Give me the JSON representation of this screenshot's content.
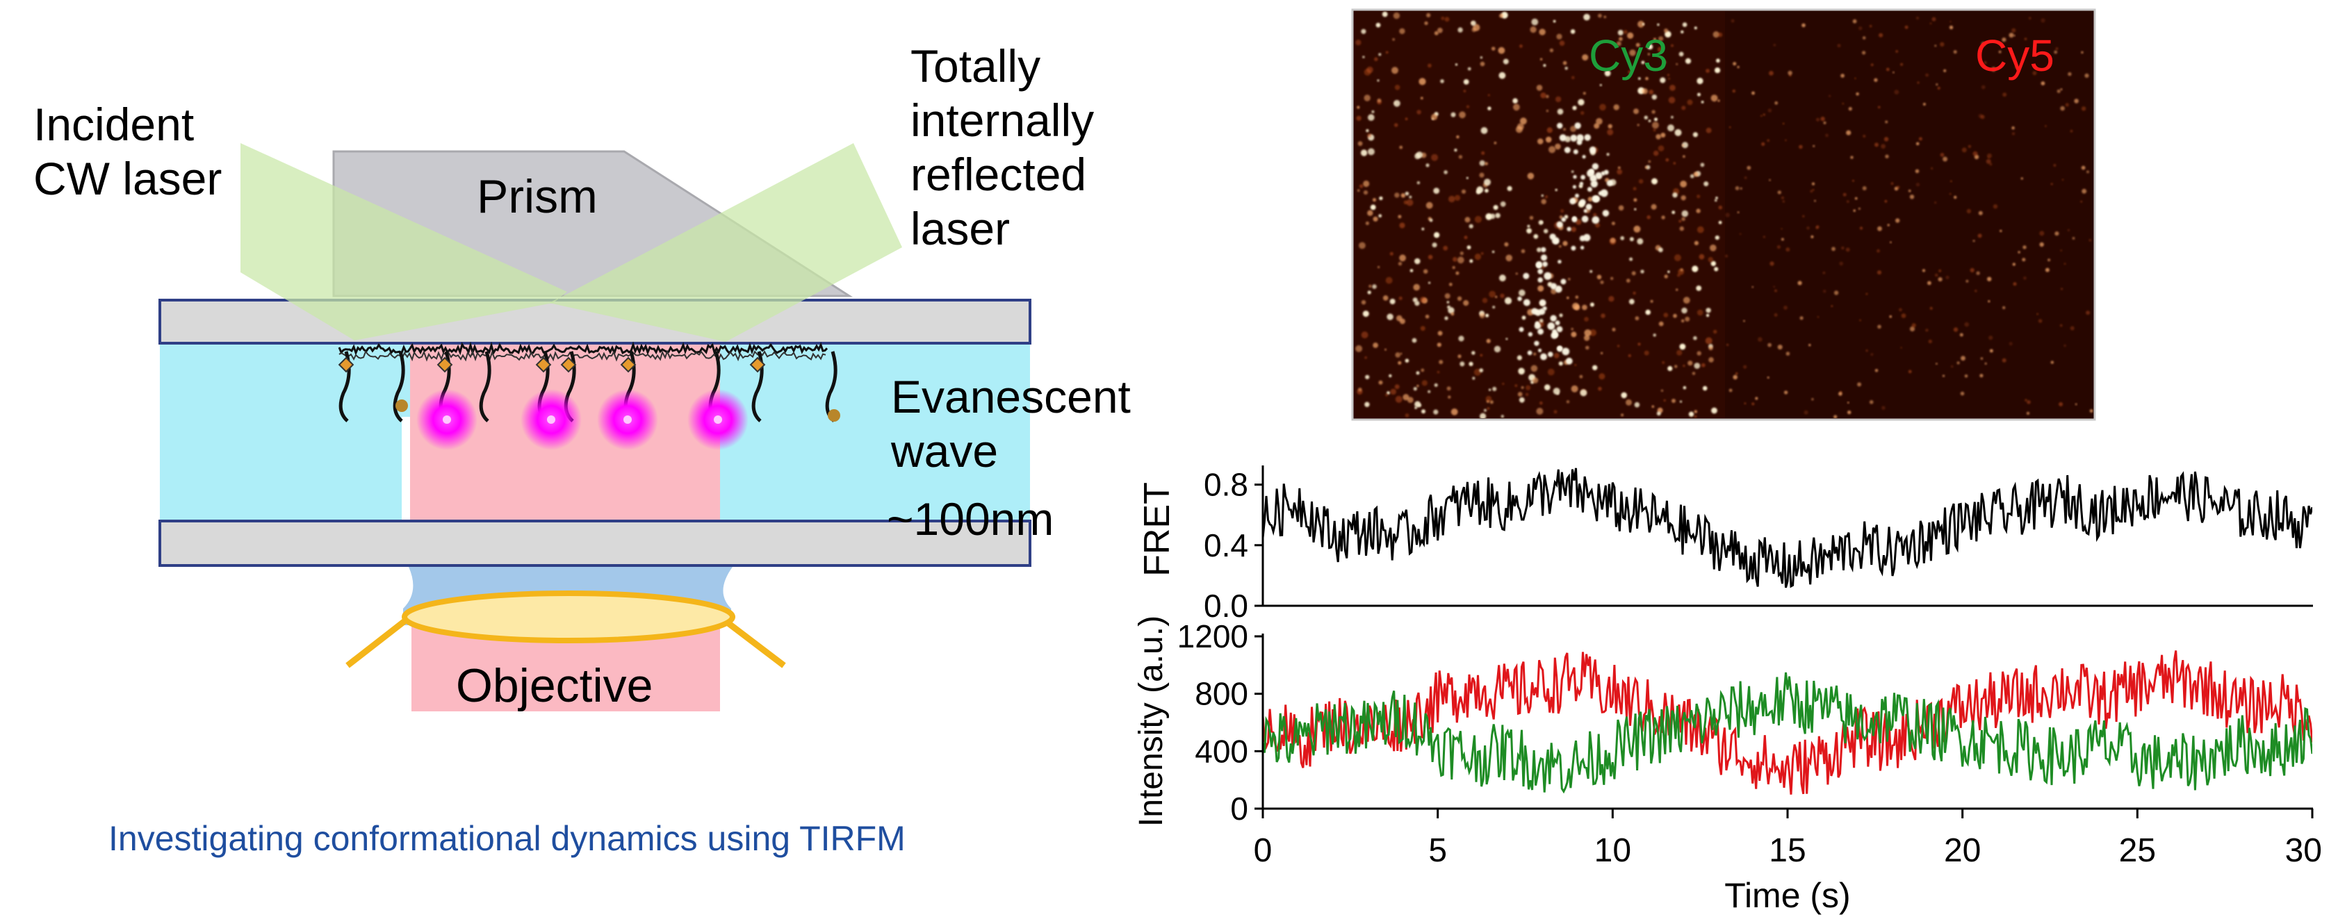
{
  "diagram": {
    "incident_label": [
      "Incident",
      "CW laser"
    ],
    "reflected_label": [
      "Totally",
      "internally",
      "reflected",
      "laser"
    ],
    "prism_label": "Prism",
    "evanescent_label": [
      "Evanescent",
      "wave"
    ],
    "depth_label": "~100nm",
    "objective_label": "Objective",
    "caption": "Investigating conformational dynamics using TIRFM",
    "colors": {
      "beam": "#d2ecb4",
      "prism": "#c9c9ce",
      "slide": "#d9d9d9",
      "slide_border": "#2f3f86",
      "chamber": "#aeeef8",
      "illumination": "#fbb9c2",
      "fluorophore": "#ff00ff",
      "objective_lens": "#fde9a6",
      "objective_frame": "#f4b51a",
      "caption": "#1f4e9f"
    }
  },
  "micrograph": {
    "left_channel_label": "Cy3",
    "right_channel_label": "Cy5",
    "colors": {
      "cy3_label": "#1e9e3a",
      "cy5_label": "#ff1a1a",
      "background": "#2a0700",
      "spot": "#fff1c0"
    }
  },
  "chart_data": [
    {
      "type": "line",
      "ylabel": "FRET",
      "xlim": [
        0,
        30
      ],
      "ylim": [
        0,
        1
      ],
      "yticks": [
        "0.0",
        "0.4",
        "0.8"
      ],
      "grid": false,
      "series": [
        {
          "color": "#000000",
          "x": [
            0,
            1,
            2,
            3,
            4,
            5,
            6,
            7,
            8,
            9,
            10,
            11,
            12,
            13,
            14,
            15,
            16,
            17,
            18,
            19,
            20,
            21,
            22,
            23,
            24,
            25,
            26,
            27,
            28,
            29,
            30
          ],
          "y": [
            0.55,
            0.7,
            0.45,
            0.5,
            0.45,
            0.6,
            0.7,
            0.65,
            0.75,
            0.75,
            0.65,
            0.6,
            0.5,
            0.4,
            0.3,
            0.25,
            0.3,
            0.4,
            0.35,
            0.45,
            0.55,
            0.6,
            0.65,
            0.7,
            0.6,
            0.7,
            0.75,
            0.7,
            0.6,
            0.6,
            0.5
          ]
        }
      ]
    },
    {
      "type": "line",
      "ylabel": "Intensity (a.u.)",
      "xlabel": "Time (s)",
      "xlim": [
        0,
        30
      ],
      "ylim": [
        0,
        1200
      ],
      "yticks": [
        "0",
        "400",
        "800",
        "1200"
      ],
      "xticks": [
        "0",
        "5",
        "10",
        "15",
        "20",
        "25",
        "30"
      ],
      "grid": false,
      "series": [
        {
          "color": "#e0161a",
          "x": [
            0,
            1,
            2,
            3,
            4,
            5,
            6,
            7,
            8,
            9,
            10,
            11,
            12,
            13,
            14,
            15,
            16,
            17,
            18,
            19,
            20,
            21,
            22,
            23,
            24,
            25,
            26,
            27,
            28,
            29,
            30
          ],
          "y": [
            650,
            450,
            600,
            550,
            600,
            750,
            850,
            800,
            850,
            900,
            800,
            700,
            600,
            450,
            350,
            250,
            350,
            500,
            450,
            600,
            700,
            750,
            800,
            850,
            750,
            850,
            900,
            850,
            700,
            750,
            650
          ]
        },
        {
          "color": "#1e8c24",
          "x": [
            0,
            1,
            2,
            3,
            4,
            5,
            6,
            7,
            8,
            9,
            10,
            11,
            12,
            13,
            14,
            15,
            16,
            17,
            18,
            19,
            20,
            21,
            22,
            23,
            24,
            25,
            26,
            27,
            28,
            29,
            30
          ],
          "y": [
            500,
            450,
            600,
            550,
            650,
            450,
            350,
            400,
            300,
            300,
            400,
            500,
            550,
            650,
            700,
            750,
            700,
            600,
            650,
            550,
            500,
            450,
            400,
            350,
            450,
            350,
            300,
            350,
            450,
            400,
            550
          ]
        }
      ]
    }
  ]
}
